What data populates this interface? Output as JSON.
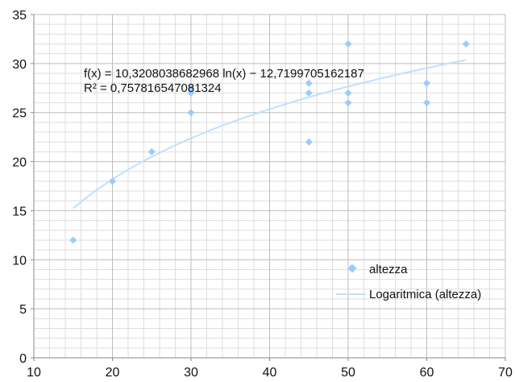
{
  "chart_data": {
    "type": "scatter",
    "xlim": [
      10,
      70
    ],
    "ylim": [
      0,
      35
    ],
    "x_ticks": [
      10,
      20,
      30,
      40,
      50,
      60,
      70
    ],
    "y_ticks": [
      0,
      5,
      10,
      15,
      20,
      25,
      30,
      35
    ],
    "grid": true,
    "legend_position": "bottom-right",
    "series": [
      {
        "name": "altezza",
        "kind": "points",
        "color": "#99ccff",
        "points": [
          [
            15,
            12
          ],
          [
            20,
            18
          ],
          [
            25,
            21
          ],
          [
            30,
            25
          ],
          [
            30,
            27
          ],
          [
            30,
            27.5
          ],
          [
            45,
            22
          ],
          [
            45,
            27
          ],
          [
            45,
            28
          ],
          [
            50,
            26
          ],
          [
            50,
            27
          ],
          [
            50,
            32
          ],
          [
            60,
            26
          ],
          [
            60,
            28
          ],
          [
            65,
            32
          ]
        ]
      },
      {
        "name": "Logaritmica (altezza)",
        "kind": "trendline",
        "color": "#bfe0ff",
        "a": 10.3208038682968,
        "b": -12.7199705162187,
        "x_range": [
          15,
          65
        ]
      }
    ],
    "annotations": {
      "equation": "f(x) = 10,3208038682968 ln(x) − 12,7199705162187",
      "r_squared": "R² = 0,757816547081324"
    }
  }
}
